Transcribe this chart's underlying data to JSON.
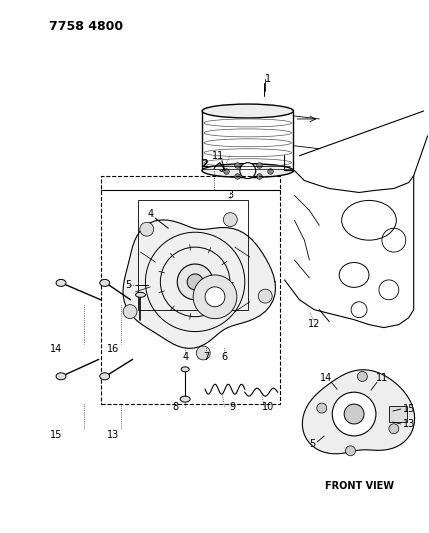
{
  "title": "7758 4800",
  "background_color": "#ffffff",
  "line_color": "#000000",
  "text_color": "#000000",
  "fig_width": 4.29,
  "fig_height": 5.33,
  "dpi": 100,
  "front_view_label": "FRONT VIEW"
}
